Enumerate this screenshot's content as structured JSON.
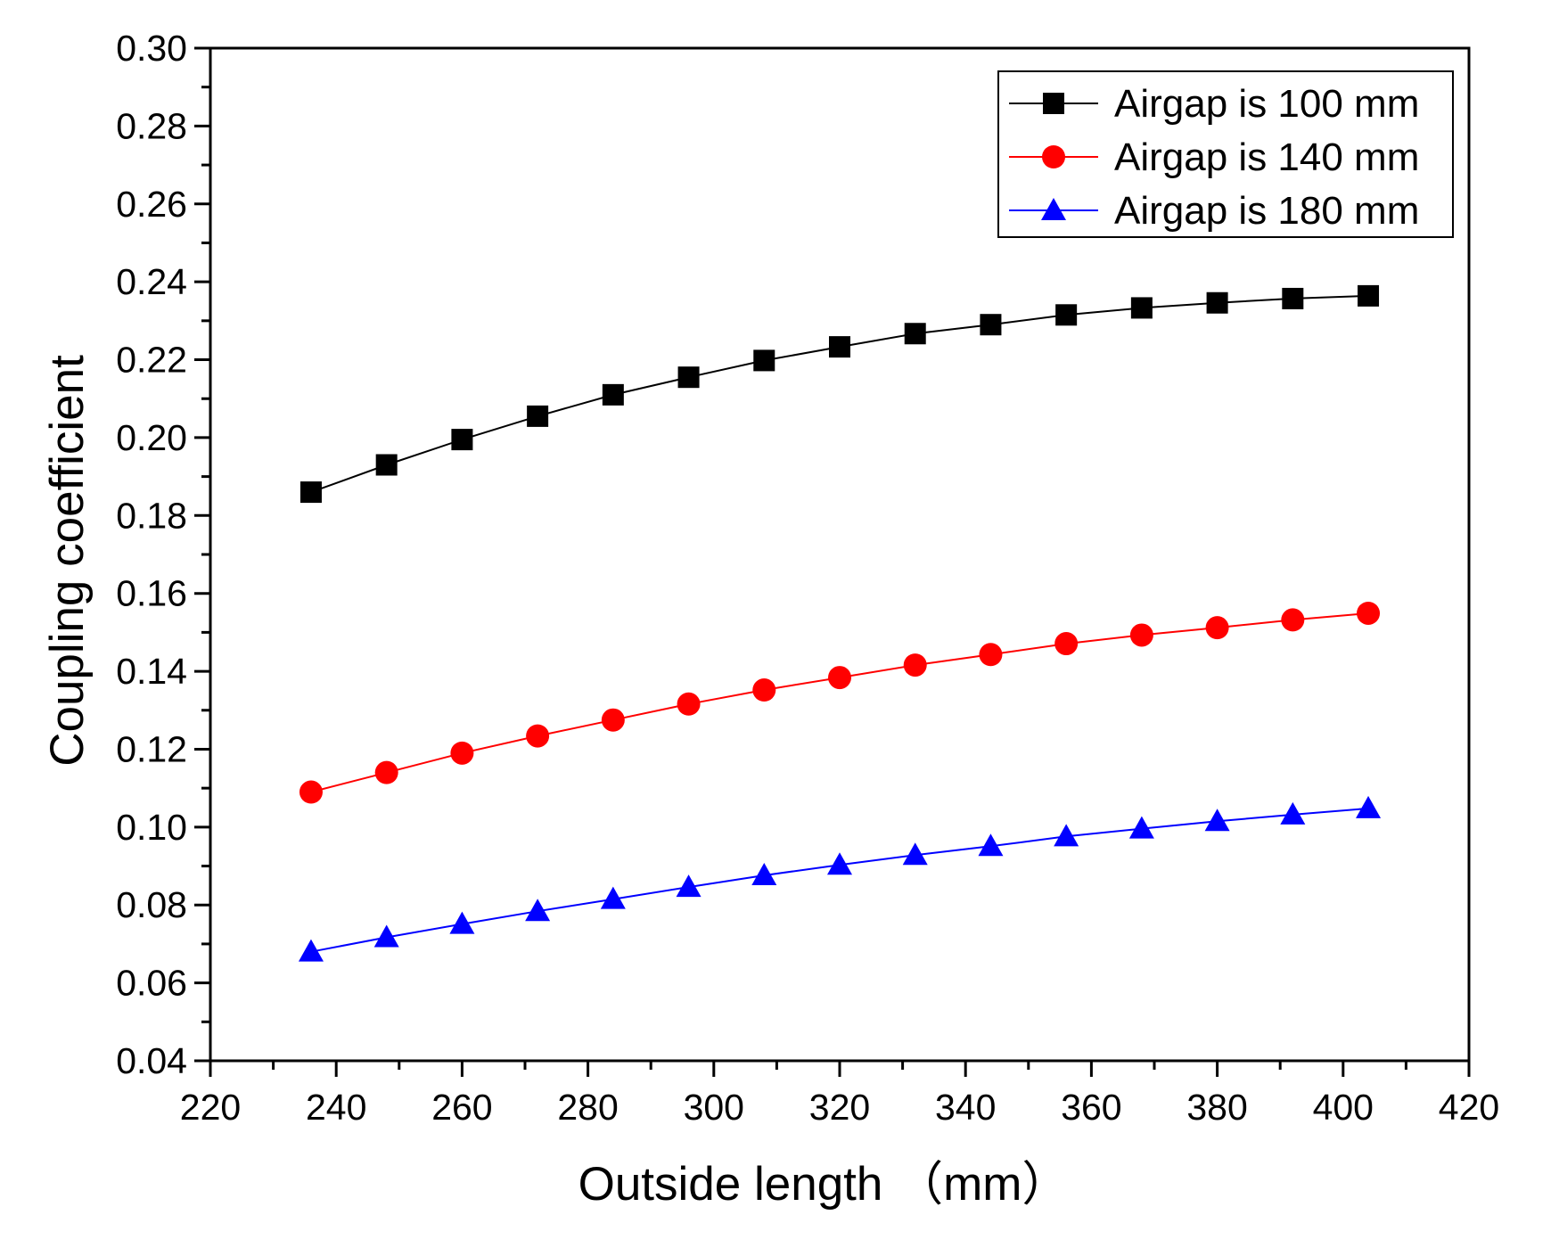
{
  "chart_data": {
    "type": "line",
    "title": "",
    "xlabel": "Outside length （mm）",
    "ylabel": "Coupling coefficient",
    "xlim": [
      220,
      420
    ],
    "ylim": [
      0.04,
      0.3
    ],
    "x_ticks": [
      "220",
      "240",
      "260",
      "280",
      "300",
      "320",
      "340",
      "360",
      "380",
      "400",
      "420"
    ],
    "y_ticks": [
      "0.04",
      "0.06",
      "0.08",
      "0.10",
      "0.12",
      "0.14",
      "0.16",
      "0.18",
      "0.20",
      "0.22",
      "0.24",
      "0.26",
      "0.28",
      "0.30"
    ],
    "grid": false,
    "legend_position": "top-right",
    "x": [
      236,
      248,
      260,
      272,
      284,
      296,
      308,
      320,
      332,
      344,
      356,
      368,
      380,
      392,
      404
    ],
    "series": [
      {
        "name": "Airgap is 100 mm",
        "color": "#000000",
        "marker": "square",
        "values": [
          0.186,
          0.193,
          0.1995,
          0.2055,
          0.211,
          0.2155,
          0.2198,
          0.2233,
          0.2267,
          0.229,
          0.2315,
          0.2333,
          0.2346,
          0.2357,
          0.2364
        ]
      },
      {
        "name": "Airgap is 140 mm",
        "color": "#ff0000",
        "marker": "circle",
        "values": [
          0.109,
          0.114,
          0.119,
          0.1234,
          0.1275,
          0.1316,
          0.1352,
          0.1384,
          0.1416,
          0.1443,
          0.1471,
          0.1493,
          0.1512,
          0.1532,
          0.1549
        ]
      },
      {
        "name": "Airgap is 180 mm",
        "color": "#0000ff",
        "marker": "triangle",
        "values": [
          0.068,
          0.0717,
          0.0751,
          0.0784,
          0.0815,
          0.0846,
          0.0876,
          0.0903,
          0.0928,
          0.0951,
          0.0976,
          0.0996,
          0.1015,
          0.1032,
          0.1048
        ]
      }
    ]
  }
}
